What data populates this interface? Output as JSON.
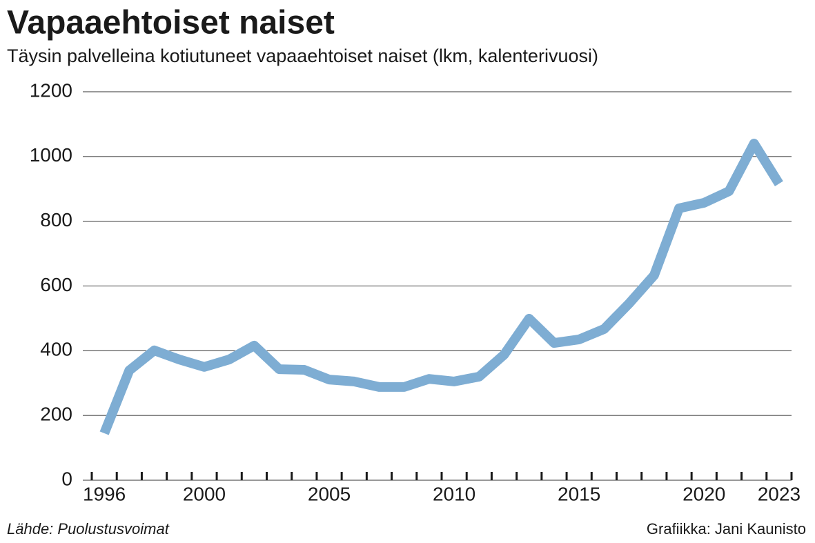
{
  "chart_data": {
    "type": "line",
    "title": "Vapaaehtoiset naiset",
    "subtitle": "Täysin palvelleina kotiutuneet vapaaehtoiset naiset (lkm, kalenterivuosi)",
    "source": "Lähde: Puolustusvoimat",
    "credit": "Grafiikka: Jani Kaunisto",
    "x": [
      1996,
      1997,
      1998,
      1999,
      2000,
      2001,
      2002,
      2003,
      2004,
      2005,
      2006,
      2007,
      2008,
      2009,
      2010,
      2011,
      2012,
      2013,
      2014,
      2015,
      2016,
      2017,
      2018,
      2019,
      2020,
      2021,
      2022,
      2023
    ],
    "series": [
      {
        "color": "#7eadd3",
        "values": [
          145,
          339,
          401,
          373,
          350,
          373,
          416,
          343,
          341,
          311,
          305,
          288,
          288,
          313,
          305,
          320,
          388,
          499,
          424,
          435,
          467,
          546,
          633,
          840,
          857,
          893,
          1040,
          916
        ]
      }
    ],
    "xlim": [
      1995.5,
      2023.5
    ],
    "xticks": [
      1996,
      2000,
      2005,
      2010,
      2015,
      2020,
      2023
    ],
    "ylim": [
      0,
      1200
    ],
    "yticks": [
      0,
      200,
      400,
      600,
      800,
      1000,
      1200
    ],
    "grid": true
  }
}
